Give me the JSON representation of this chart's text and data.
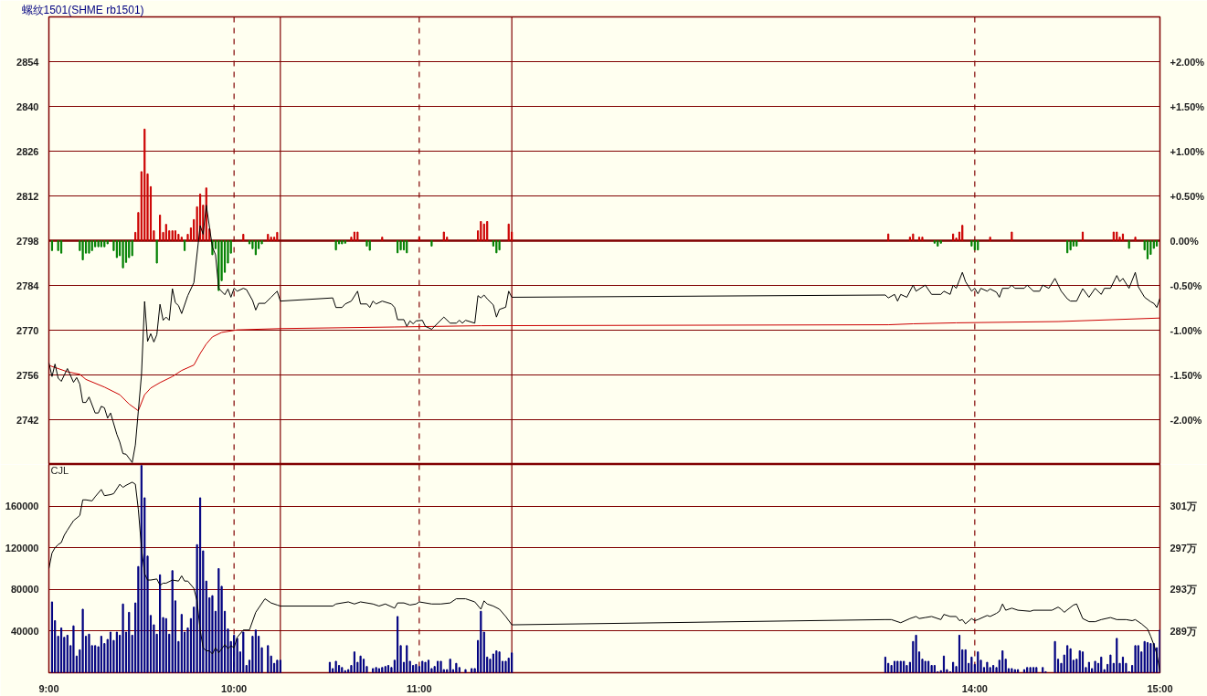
{
  "chart_data": [
    {
      "type": "line",
      "title": "螺纹1501(SHME rb1501)",
      "xlim": [
        9,
        15
      ],
      "ylim": [
        2728,
        2868
      ],
      "yticks": [
        2742,
        2756,
        2770,
        2784,
        2798,
        2812,
        2826,
        2840,
        2854
      ],
      "y2lim": [
        -2.5,
        2.5
      ],
      "y2ticks": [
        {
          "value": -2,
          "label": "-2.00%"
        },
        {
          "value": -1.5,
          "label": "-1.50%"
        },
        {
          "value": -1,
          "label": "-1.00%"
        },
        {
          "value": -0.5,
          "label": "-0.50%"
        },
        {
          "value": 0,
          "label": "0.00%"
        },
        {
          "value": 0.5,
          "label": "+0.50%"
        },
        {
          "value": 1,
          "label": "+1.00%"
        },
        {
          "value": 1.5,
          "label": "+1.50%"
        },
        {
          "value": 2,
          "label": "+2.00%"
        }
      ],
      "tick_labels": "y",
      "grid": "y",
      "ref_lines": [
        {
          "axis": "y",
          "value": 2798,
          "line_style": "solid",
          "color": "#800000"
        },
        {
          "axis": "x",
          "value": 10,
          "line_style": "dashed",
          "color": "#800000"
        },
        {
          "axis": "x",
          "value": 10.25,
          "line_style": "solid",
          "color": "#800000"
        },
        {
          "axis": "x",
          "value": 11,
          "line_style": "dashed",
          "color": "#800000"
        },
        {
          "axis": "x",
          "value": 11.5,
          "line_style": "solid",
          "color": "#800000"
        },
        {
          "axis": "x",
          "value": 14,
          "line_style": "dashed",
          "color": "#800000"
        }
      ],
      "series": [
        {
          "type": "bar",
          "color": "#cc0000",
          "x": [
            9.467,
            9.483,
            9.5,
            9.517,
            9.533,
            9.55,
            9.567,
            9.6,
            9.617,
            9.633,
            9.65,
            9.667,
            9.683,
            9.7,
            9.717,
            9.75,
            9.767,
            9.783,
            9.8,
            9.817,
            9.833,
            9.85,
            9.867,
            10.05,
            10.183,
            10.2,
            10.217,
            10.233,
            10.633,
            10.65,
            10.667,
            10.8,
            11,
            11.133,
            11.15,
            11.317,
            11.333,
            11.35,
            11.367,
            11.483,
            11.5,
            13.533,
            13.65,
            13.667,
            13.7,
            13.717,
            13.883,
            13.9,
            13.917,
            13.933,
            14.083,
            14.2,
            14.583,
            14.75,
            14.767,
            14.783,
            14.8,
            14.867
          ],
          "values": [
            2.6,
            8.8,
            21.6,
            34.9,
            20.9,
            16.9,
            3.1,
            8,
            2.6,
            5.1,
            3.1,
            3.1,
            3.1,
            2,
            1.1,
            2,
            4,
            6.6,
            10.6,
            14.6,
            11.1,
            16.5,
            3.7,
            2,
            2,
            1.1,
            1.1,
            2.6,
            1.1,
            2.7,
            2.7,
            1.1,
            1.1,
            2.7,
            1.1,
            3.1,
            6,
            5.2,
            6,
            5.2,
            2.7,
            2.1,
            1.1,
            2.1,
            1.1,
            1.1,
            2.1,
            0.8,
            2.7,
            4.8,
            1.1,
            2.7,
            2.7,
            2.7,
            2.7,
            1.1,
            2.1,
            1.1
          ],
          "base": [
            2798,
            2798,
            2798,
            2798,
            2798,
            2798,
            2798,
            2798,
            2798,
            2798,
            2798,
            2798,
            2798,
            2798,
            2798,
            2798,
            2798,
            2798,
            2798,
            2798,
            2798,
            2798,
            2798,
            2798,
            2798,
            2798,
            2798,
            2798,
            2798,
            2798,
            2798,
            2798,
            2798,
            2798,
            2798,
            2798,
            2798,
            2798,
            2798,
            2798,
            2798,
            2798,
            2798,
            2798,
            2798,
            2798,
            2798,
            2798,
            2798,
            2798,
            2798,
            2798,
            2798,
            2798,
            2798,
            2798,
            2798,
            2798
          ]
        },
        {
          "type": "bar",
          "color": "#008000",
          "x": [
            9.017,
            9.05,
            9.067,
            9.167,
            9.183,
            9.2,
            9.217,
            9.233,
            9.25,
            9.267,
            9.283,
            9.3,
            9.317,
            9.35,
            9.367,
            9.383,
            9.4,
            9.417,
            9.433,
            9.45,
            9.583,
            9.733,
            9.883,
            9.9,
            9.917,
            9.933,
            9.95,
            9.967,
            9.983,
            10.083,
            10.1,
            10.117,
            10.133,
            10.15,
            10.55,
            10.567,
            10.583,
            10.6,
            10.717,
            10.733,
            10.883,
            10.9,
            10.917,
            10.933,
            11.067,
            11.4,
            11.417,
            11.433,
            13.783,
            13.8,
            13.817,
            13.983,
            14,
            14.017,
            14.5,
            14.517,
            14.533,
            14.55,
            14.833,
            14.917,
            14.933,
            14.95,
            14.967,
            14.983
          ],
          "values": [
            -3.1,
            -3.1,
            -3.9,
            -3.1,
            -6,
            -3.9,
            -3.9,
            -3.1,
            -1.9,
            -1.9,
            -1.9,
            -1.9,
            -1,
            -3.1,
            -5.3,
            -4.7,
            -8.5,
            -6.8,
            -5.3,
            -4.7,
            -7,
            -3.1,
            -4.4,
            -2.5,
            -15.6,
            -12.5,
            -9.9,
            -7,
            -3.9,
            -1,
            -2.5,
            -4.4,
            -2.5,
            -1,
            -2.9,
            -1,
            -1,
            -0.8,
            -1.7,
            -3,
            -3.8,
            -2.9,
            -2.9,
            -3.8,
            -1.7,
            -1.7,
            -3.8,
            -2.9,
            -0.8,
            -1.7,
            -0.8,
            -1.7,
            -2.9,
            -2.9,
            -3.8,
            -2.9,
            -1.7,
            -1.7,
            -2.4,
            -2.9,
            -5.7,
            -4.3,
            -2.4,
            -1.7
          ],
          "base": [
            2798,
            2798,
            2798,
            2798,
            2798,
            2798,
            2798,
            2798,
            2798,
            2798,
            2798,
            2798,
            2798,
            2798,
            2798,
            2798,
            2798,
            2798,
            2798,
            2798,
            2798,
            2798,
            2798,
            2798,
            2798,
            2798,
            2798,
            2798,
            2798,
            2798,
            2798,
            2798,
            2798,
            2798,
            2798,
            2798,
            2798,
            2798,
            2798,
            2798,
            2798,
            2798,
            2798,
            2798,
            2798,
            2798,
            2798,
            2798,
            2798,
            2798,
            2798,
            2798,
            2798,
            2798,
            2798,
            2798,
            2798,
            2798,
            2798,
            2798,
            2798,
            2798,
            2798,
            2798
          ]
        },
        {
          "color": "#cc0000",
          "x": [
            9,
            9.1,
            9.167,
            9.2,
            9.3,
            9.383,
            9.433,
            9.483,
            9.517,
            9.55,
            9.6,
            9.667,
            9.717,
            9.783,
            9.817,
            9.85,
            9.883,
            9.933,
            10.017,
            10.25,
            10.867,
            11.333,
            13.533,
            13.667,
            13.9,
            14.45,
            15
          ],
          "values": [
            2759,
            2757,
            2756.2,
            2754.6,
            2752.2,
            2749.8,
            2746.9,
            2744.8,
            2749.8,
            2751.9,
            2753.6,
            2755.5,
            2757.4,
            2759.1,
            2762.7,
            2765.7,
            2767.9,
            2769.3,
            2770.1,
            2770.5,
            2771,
            2771.4,
            2771.7,
            2772,
            2772.3,
            2772.7,
            2773.8
          ]
        },
        {
          "color": "#000000",
          "x": [
            9,
            9.017,
            9.033,
            9.05,
            9.067,
            9.1,
            9.133,
            9.15,
            9.167,
            9.183,
            9.2,
            9.217,
            9.25,
            9.267,
            9.283,
            9.3,
            9.317,
            9.333,
            9.367,
            9.383,
            9.4,
            9.417,
            9.45,
            9.467,
            9.5,
            9.517,
            9.533,
            9.55,
            9.567,
            9.583,
            9.6,
            9.617,
            9.633,
            9.65,
            9.667,
            9.683,
            9.7,
            9.717,
            9.75,
            9.783,
            9.817,
            9.833,
            9.85,
            9.883,
            9.9,
            9.917,
            9.95,
            9.967,
            9.983,
            10,
            10.017,
            10.05,
            10.067,
            10.1,
            10.117,
            10.133,
            10.167,
            10.2,
            10.233,
            10.25,
            10.533,
            10.55,
            10.583,
            10.6,
            10.633,
            10.667,
            10.683,
            10.717,
            10.733,
            10.75,
            10.767,
            10.8,
            10.85,
            10.867,
            10.883,
            10.917,
            10.933,
            10.95,
            10.967,
            10.983,
            11.017,
            11.033,
            11.067,
            11.133,
            11.167,
            11.2,
            11.217,
            11.233,
            11.25,
            11.3,
            11.317,
            11.333,
            11.35,
            11.367,
            11.4,
            11.417,
            11.433,
            11.467,
            11.483,
            11.5,
            13.517,
            13.533,
            13.567,
            13.583,
            13.6,
            13.633,
            13.667,
            13.683,
            13.733,
            13.767,
            13.817,
            13.833,
            13.867,
            13.883,
            13.9,
            13.933,
            13.95,
            13.983,
            14,
            14.017,
            14.033,
            14.067,
            14.083,
            14.117,
            14.133,
            14.15,
            14.183,
            14.2,
            14.217,
            14.267,
            14.283,
            14.317,
            14.35,
            14.367,
            14.4,
            14.433,
            14.467,
            14.5,
            14.517,
            14.55,
            14.583,
            14.617,
            14.65,
            14.683,
            14.7,
            14.733,
            14.767,
            14.783,
            14.8,
            14.833,
            14.867,
            14.883,
            14.917,
            14.95,
            14.967,
            14.983,
            15
          ],
          "values": [
            2759.8,
            2755.5,
            2759.4,
            2755,
            2754,
            2758,
            2753.7,
            2755.2,
            2753.1,
            2747.4,
            2747.4,
            2749.1,
            2744.1,
            2744.1,
            2746.2,
            2745.7,
            2742.5,
            2744.1,
            2737.4,
            2735,
            2731.4,
            2731.2,
            2728.6,
            2734.1,
            2756,
            2779,
            2766.5,
            2768.9,
            2766.3,
            2768.6,
            2778.1,
            2773.1,
            2774.1,
            2773.1,
            2783,
            2778.6,
            2777.7,
            2775.2,
            2780.8,
            2784.9,
            2802.7,
            2800,
            2809.1,
            2796,
            2793.6,
            2783.1,
            2781.1,
            2782.9,
            2780.3,
            2783.1,
            2782.2,
            2783.1,
            2782.7,
            2779.3,
            2776.3,
            2778.4,
            2778.4,
            2780.3,
            2782.2,
            2779.1,
            2780.1,
            2777.1,
            2777.1,
            2778.2,
            2779.1,
            2782.2,
            2778.2,
            2778.2,
            2777.1,
            2779.1,
            2778.2,
            2779.1,
            2778.2,
            2777.1,
            2773.3,
            2773.3,
            2771.2,
            2772.9,
            2772,
            2772.9,
            2773.1,
            2771.2,
            2770.3,
            2774.1,
            2772.2,
            2772.2,
            2773.1,
            2772.2,
            2773.1,
            2772.2,
            2780.8,
            2780.1,
            2781,
            2779.8,
            2777.9,
            2774.1,
            2776.5,
            2777.2,
            2782.2,
            2780.3,
            2781,
            2780.1,
            2781.2,
            2779.1,
            2781.2,
            2780.3,
            2784.1,
            2782.2,
            2784.1,
            2781.2,
            2781.2,
            2782.2,
            2781.2,
            2784.1,
            2783.1,
            2788.1,
            2785.2,
            2782.2,
            2783.1,
            2781.4,
            2783.1,
            2782.2,
            2782.9,
            2781.9,
            2780.3,
            2783.1,
            2783.1,
            2784.1,
            2783.1,
            2783.1,
            2784.1,
            2782.2,
            2782.2,
            2784.1,
            2783.1,
            2786.2,
            2782.2,
            2779.8,
            2779.1,
            2779.1,
            2783,
            2780.3,
            2783.1,
            2781.2,
            2783.1,
            2783.1,
            2787.1,
            2785.2,
            2786.2,
            2783.1,
            2788.1,
            2783.6,
            2780.3,
            2778.9,
            2778.4,
            2777.1,
            2780
          ]
        }
      ]
    },
    {
      "type": "bar",
      "title": "CJL",
      "xlim": [
        9,
        15
      ],
      "xticks": [
        {
          "value": 9,
          "label": "9:00"
        },
        {
          "value": 10,
          "label": "10:00"
        },
        {
          "value": 11,
          "label": "11:00"
        },
        {
          "value": 14,
          "label": "14:00"
        },
        {
          "value": 15,
          "label": "15:00"
        }
      ],
      "ylim": [
        0,
        200000
      ],
      "yticks": [
        40000,
        80000,
        120000,
        160000
      ],
      "y2lim": [
        285,
        305
      ],
      "y2ticks": [
        {
          "value": 289,
          "label": "289万"
        },
        {
          "value": 293,
          "label": "293万"
        },
        {
          "value": 297,
          "label": "297万"
        },
        {
          "value": 301,
          "label": "301万"
        }
      ],
      "grid": "y",
      "ref_lines": [
        {
          "axis": "x",
          "value": 10,
          "line_style": "dashed",
          "color": "#800000"
        },
        {
          "axis": "x",
          "value": 10.25,
          "line_style": "solid",
          "color": "#800000"
        },
        {
          "axis": "x",
          "value": 11,
          "line_style": "dashed",
          "color": "#800000"
        },
        {
          "axis": "x",
          "value": 11.5,
          "line_style": "solid",
          "color": "#800000"
        },
        {
          "axis": "x",
          "value": 14,
          "line_style": "dashed",
          "color": "#800000"
        }
      ],
      "series": [
        {
          "color": "#000080",
          "x": [
            9.017,
            9.033,
            9.05,
            9.067,
            9.083,
            9.1,
            9.117,
            9.133,
            9.15,
            9.167,
            9.183,
            9.2,
            9.217,
            9.233,
            9.25,
            9.267,
            9.283,
            9.3,
            9.317,
            9.333,
            9.35,
            9.367,
            9.383,
            9.4,
            9.417,
            9.433,
            9.45,
            9.467,
            9.483,
            9.5,
            9.517,
            9.533,
            9.55,
            9.567,
            9.583,
            9.6,
            9.617,
            9.633,
            9.65,
            9.667,
            9.683,
            9.7,
            9.717,
            9.733,
            9.75,
            9.767,
            9.783,
            9.8,
            9.817,
            9.833,
            9.85,
            9.867,
            9.883,
            9.9,
            9.917,
            9.933,
            9.95,
            9.967,
            9.983,
            10,
            10.017,
            10.033,
            10.05,
            10.067,
            10.083,
            10.1,
            10.117,
            10.133,
            10.15,
            10.183,
            10.2,
            10.217,
            10.233,
            10.25,
            10.517,
            10.533,
            10.55,
            10.567,
            10.583,
            10.6,
            10.617,
            10.633,
            10.65,
            10.667,
            10.683,
            10.7,
            10.717,
            10.75,
            10.767,
            10.783,
            10.8,
            10.817,
            10.833,
            10.85,
            10.867,
            10.883,
            10.9,
            10.917,
            10.933,
            10.95,
            10.967,
            10.983,
            11,
            11.017,
            11.033,
            11.05,
            11.067,
            11.083,
            11.1,
            11.117,
            11.133,
            11.15,
            11.167,
            11.183,
            11.2,
            11.217,
            11.25,
            11.283,
            11.3,
            11.317,
            11.333,
            11.35,
            11.367,
            11.383,
            11.4,
            11.417,
            11.433,
            11.45,
            11.467,
            11.483,
            11.5,
            13.517,
            13.533,
            13.55,
            13.567,
            13.583,
            13.6,
            13.617,
            13.633,
            13.65,
            13.667,
            13.683,
            13.7,
            13.717,
            13.733,
            13.75,
            13.767,
            13.783,
            13.8,
            13.817,
            13.833,
            13.85,
            13.867,
            13.883,
            13.9,
            13.917,
            13.933,
            13.95,
            13.967,
            13.983,
            14,
            14.017,
            14.033,
            14.05,
            14.067,
            14.083,
            14.1,
            14.117,
            14.133,
            14.15,
            14.167,
            14.183,
            14.2,
            14.217,
            14.233,
            14.267,
            14.283,
            14.3,
            14.317,
            14.333,
            14.367,
            14.383,
            14.433,
            14.45,
            14.467,
            14.483,
            14.5,
            14.517,
            14.533,
            14.55,
            14.567,
            14.583,
            14.6,
            14.617,
            14.633,
            14.65,
            14.667,
            14.683,
            14.7,
            14.717,
            14.733,
            14.75,
            14.767,
            14.783,
            14.8,
            14.817,
            14.833,
            14.85,
            14.867,
            14.883,
            14.9,
            14.917,
            14.933,
            14.95,
            14.967,
            14.983,
            15
          ],
          "values": [
            68000,
            50000,
            35000,
            43000,
            34000,
            36000,
            26000,
            45000,
            16000,
            22000,
            61000,
            35000,
            37000,
            26000,
            26000,
            25000,
            35000,
            28000,
            32000,
            39000,
            31000,
            39000,
            36000,
            66000,
            39000,
            58000,
            36000,
            67000,
            102000,
            199000,
            168000,
            112000,
            55000,
            46000,
            37000,
            94000,
            53000,
            52000,
            37000,
            98000,
            69000,
            30000,
            56000,
            39000,
            43000,
            52000,
            63000,
            123000,
            168000,
            117000,
            88000,
            72000,
            74000,
            59000,
            100000,
            83000,
            59000,
            42000,
            30000,
            36000,
            33000,
            20000,
            39000,
            7000,
            12000,
            35000,
            41000,
            35000,
            24000,
            26000,
            16000,
            9000,
            12000,
            12000,
            10000,
            4000,
            11000,
            7000,
            5000,
            2000,
            3000,
            7000,
            20000,
            10000,
            16000,
            13000,
            6000,
            4000,
            5000,
            4000,
            5000,
            6000,
            7000,
            5000,
            12000,
            54000,
            26000,
            10000,
            26000,
            11000,
            7000,
            8000,
            6000,
            11000,
            10000,
            12000,
            4000,
            6000,
            11000,
            11000,
            3000,
            3000,
            13000,
            3000,
            9000,
            5000,
            3000,
            4000,
            4000,
            31000,
            59000,
            39000,
            15000,
            13000,
            18000,
            21000,
            20000,
            11000,
            11000,
            14000,
            19000,
            15000,
            9000,
            7000,
            11000,
            11000,
            11000,
            11000,
            7000,
            10000,
            30000,
            36000,
            20000,
            13000,
            11000,
            11000,
            7000,
            7000,
            1000,
            2000,
            16000,
            3000,
            1000,
            10000,
            6000,
            36000,
            22000,
            22000,
            9000,
            15000,
            8000,
            20000,
            12000,
            5000,
            10000,
            5000,
            7000,
            5000,
            12000,
            21000,
            13000,
            4000,
            4000,
            3000,
            3000,
            3000,
            5000,
            5000,
            5000,
            5000,
            5000,
            1000,
            30000,
            13000,
            9000,
            17000,
            26000,
            23000,
            12000,
            13000,
            21000,
            20000,
            5000,
            10000,
            4000,
            11000,
            9000,
            15000,
            3000,
            8000,
            17000,
            9000,
            33000,
            9000,
            15000,
            9000,
            1000,
            7000,
            26000,
            26000,
            20000,
            30000,
            29000,
            28000,
            28000,
            24000,
            41000
          ]
        },
        {
          "type": "line",
          "axis": "y2",
          "color": "#000000",
          "x": [
            9,
            9.017,
            9.033,
            9.05,
            9.067,
            9.083,
            9.1,
            9.133,
            9.167,
            9.183,
            9.2,
            9.233,
            9.25,
            9.283,
            9.3,
            9.333,
            9.35,
            9.383,
            9.4,
            9.417,
            9.45,
            9.467,
            9.483,
            9.5,
            9.517,
            9.533,
            9.55,
            9.583,
            9.6,
            9.617,
            9.633,
            9.667,
            9.7,
            9.717,
            9.733,
            9.75,
            9.783,
            9.8,
            9.817,
            9.833,
            9.85,
            9.867,
            9.883,
            9.9,
            9.917,
            9.95,
            9.967,
            9.983,
            10,
            10.017,
            10.05,
            10.083,
            10.117,
            10.167,
            10.2,
            10.233,
            10.25,
            10.533,
            10.55,
            10.617,
            10.65,
            10.683,
            10.75,
            10.783,
            10.817,
            10.867,
            10.883,
            10.917,
            10.95,
            10.983,
            11,
            11.067,
            11.117,
            11.167,
            11.2,
            11.25,
            11.3,
            11.333,
            11.35,
            11.367,
            11.4,
            11.433,
            11.467,
            11.5,
            13.517,
            13.55,
            13.6,
            13.65,
            13.683,
            13.7,
            13.733,
            13.767,
            13.817,
            13.833,
            13.867,
            13.9,
            13.917,
            13.933,
            13.95,
            13.983,
            14,
            14.017,
            14.067,
            14.083,
            14.117,
            14.133,
            14.15,
            14.167,
            14.2,
            14.233,
            14.3,
            14.317,
            14.417,
            14.45,
            14.467,
            14.483,
            14.533,
            14.55,
            14.583,
            14.617,
            14.65,
            14.683,
            14.733,
            14.767,
            14.817,
            14.85,
            14.867,
            14.9,
            14.933,
            14.95,
            14.967,
            14.983,
            15
          ],
          "values": [
            295.0,
            296.5,
            297.0,
            297.3,
            297.5,
            298.2,
            298.7,
            299.6,
            300.1,
            301.6,
            301.6,
            301.5,
            301.9,
            302.6,
            302.0,
            302.1,
            302.2,
            303.1,
            302.8,
            303.0,
            303.3,
            303.1,
            300.7,
            297.0,
            294.5,
            293.9,
            293.9,
            294.0,
            293.4,
            293.6,
            293.6,
            293.9,
            293.8,
            294.3,
            293.8,
            293.8,
            293.1,
            291.9,
            289.1,
            287.4,
            287.1,
            287.1,
            286.8,
            287.4,
            286.9,
            287.7,
            287.3,
            287.6,
            287.4,
            288.4,
            289.1,
            289.1,
            290.8,
            292.1,
            291.7,
            291.5,
            291.4,
            291.4,
            291.6,
            291.8,
            291.6,
            291.8,
            291.6,
            291.4,
            291.6,
            291.2,
            291.7,
            291.7,
            291.5,
            291.6,
            291.8,
            291.6,
            291.6,
            291.7,
            292.1,
            292.1,
            291.8,
            291.1,
            291.9,
            291.6,
            291.4,
            291.1,
            290.4,
            289.6,
            290.1,
            290.1,
            289.8,
            290.2,
            290.4,
            290.2,
            290.3,
            290.4,
            290.1,
            290.6,
            290.4,
            290.4,
            290.0,
            290.1,
            289.7,
            290.2,
            290.0,
            290.1,
            290.5,
            290.4,
            290.7,
            290.9,
            291.6,
            291.0,
            291.2,
            291.0,
            290.9,
            291.0,
            291.0,
            291.3,
            291.1,
            290.8,
            291.5,
            291.6,
            290.2,
            289.9,
            289.9,
            290.1,
            290.3,
            290.1,
            290.1,
            290.0,
            290.1,
            289.7,
            289.2,
            288.5,
            287.7,
            286.8,
            285.1
          ]
        }
      ]
    }
  ]
}
